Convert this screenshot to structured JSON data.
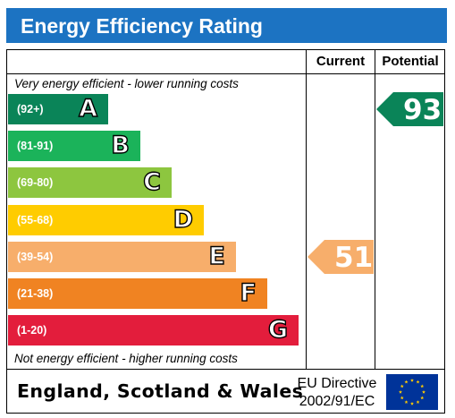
{
  "header": {
    "title": "Energy Efficiency Rating"
  },
  "columns": {
    "current": "Current",
    "potential": "Potential"
  },
  "notes": {
    "top": "Very energy efficient - lower running costs",
    "bottom": "Not energy efficient - higher running costs"
  },
  "colors": {
    "header": "#1c73c2",
    "A": "#0a8458",
    "B": "#1bb35a",
    "C": "#8dc63f",
    "D": "#ffcc00",
    "E": "#f7ae6b",
    "F": "#f08322",
    "G": "#e31d3c",
    "eu_blue": "#003399",
    "eu_star": "#ffcc00"
  },
  "chart_data": {
    "type": "bar",
    "title": "Energy Efficiency Rating",
    "bands": [
      {
        "letter": "A",
        "range": "(92+)",
        "min": 92,
        "max": 100
      },
      {
        "letter": "B",
        "range": "(81-91)",
        "min": 81,
        "max": 91
      },
      {
        "letter": "C",
        "range": "(69-80)",
        "min": 69,
        "max": 80
      },
      {
        "letter": "D",
        "range": "(55-68)",
        "min": 55,
        "max": 68
      },
      {
        "letter": "E",
        "range": "(39-54)",
        "min": 39,
        "max": 54
      },
      {
        "letter": "F",
        "range": "(21-38)",
        "min": 21,
        "max": 38
      },
      {
        "letter": "G",
        "range": "(1-20)",
        "min": 1,
        "max": 20
      }
    ],
    "current": {
      "value": 51,
      "label": "51",
      "band": "E"
    },
    "potential": {
      "value": 93,
      "label": "93",
      "band": "A"
    }
  },
  "footer": {
    "country": "England, Scotland & Wales",
    "directive_line1": "EU Directive",
    "directive_line2": "2002/91/EC",
    "flag_icon": "eu-flag-icon"
  }
}
